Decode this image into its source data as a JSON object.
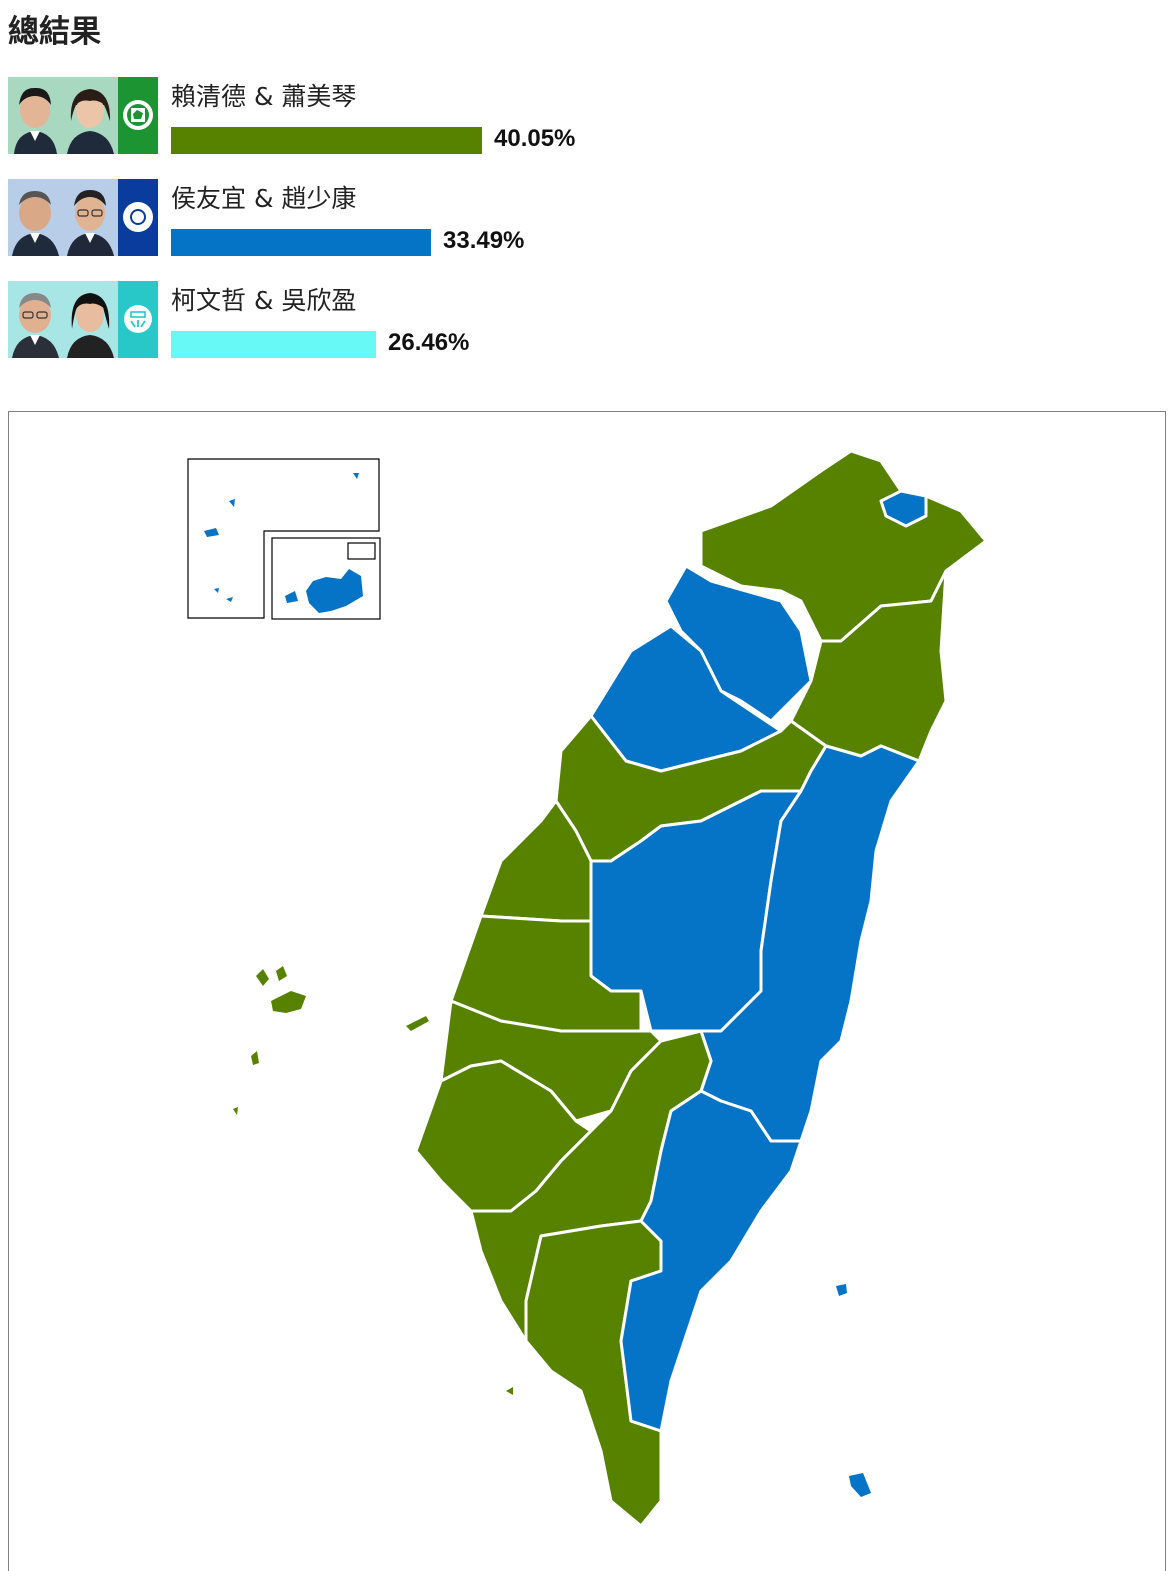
{
  "heading": "總結果",
  "candidates": [
    {
      "names": "賴清德 & 蕭美琴",
      "percent_label": "40.05%",
      "percent": 40.05,
      "color": "#578200",
      "party_color": "#1b9431",
      "party_icon": "dpp-emblem-icon",
      "photo_bg": "#a8d8c0"
    },
    {
      "names": "侯友宜 & 趙少康",
      "percent_label": "33.49%",
      "percent": 33.49,
      "color": "#0573c6",
      "party_color": "#0a3c9e",
      "party_icon": "kmt-sun-icon",
      "photo_bg": "#b8cde8"
    },
    {
      "names": "柯文哲 & 吳欣盈",
      "percent_label": "26.46%",
      "percent": 26.46,
      "color": "#66f9f5",
      "party_color": "#28c8c8",
      "party_icon": "tpp-emblem-icon",
      "photo_bg": "#a8e6e6"
    }
  ],
  "map": {
    "winner_colors": {
      "dpp": "#578200",
      "kmt": "#0573c6"
    },
    "border_color": "#ffffff"
  }
}
